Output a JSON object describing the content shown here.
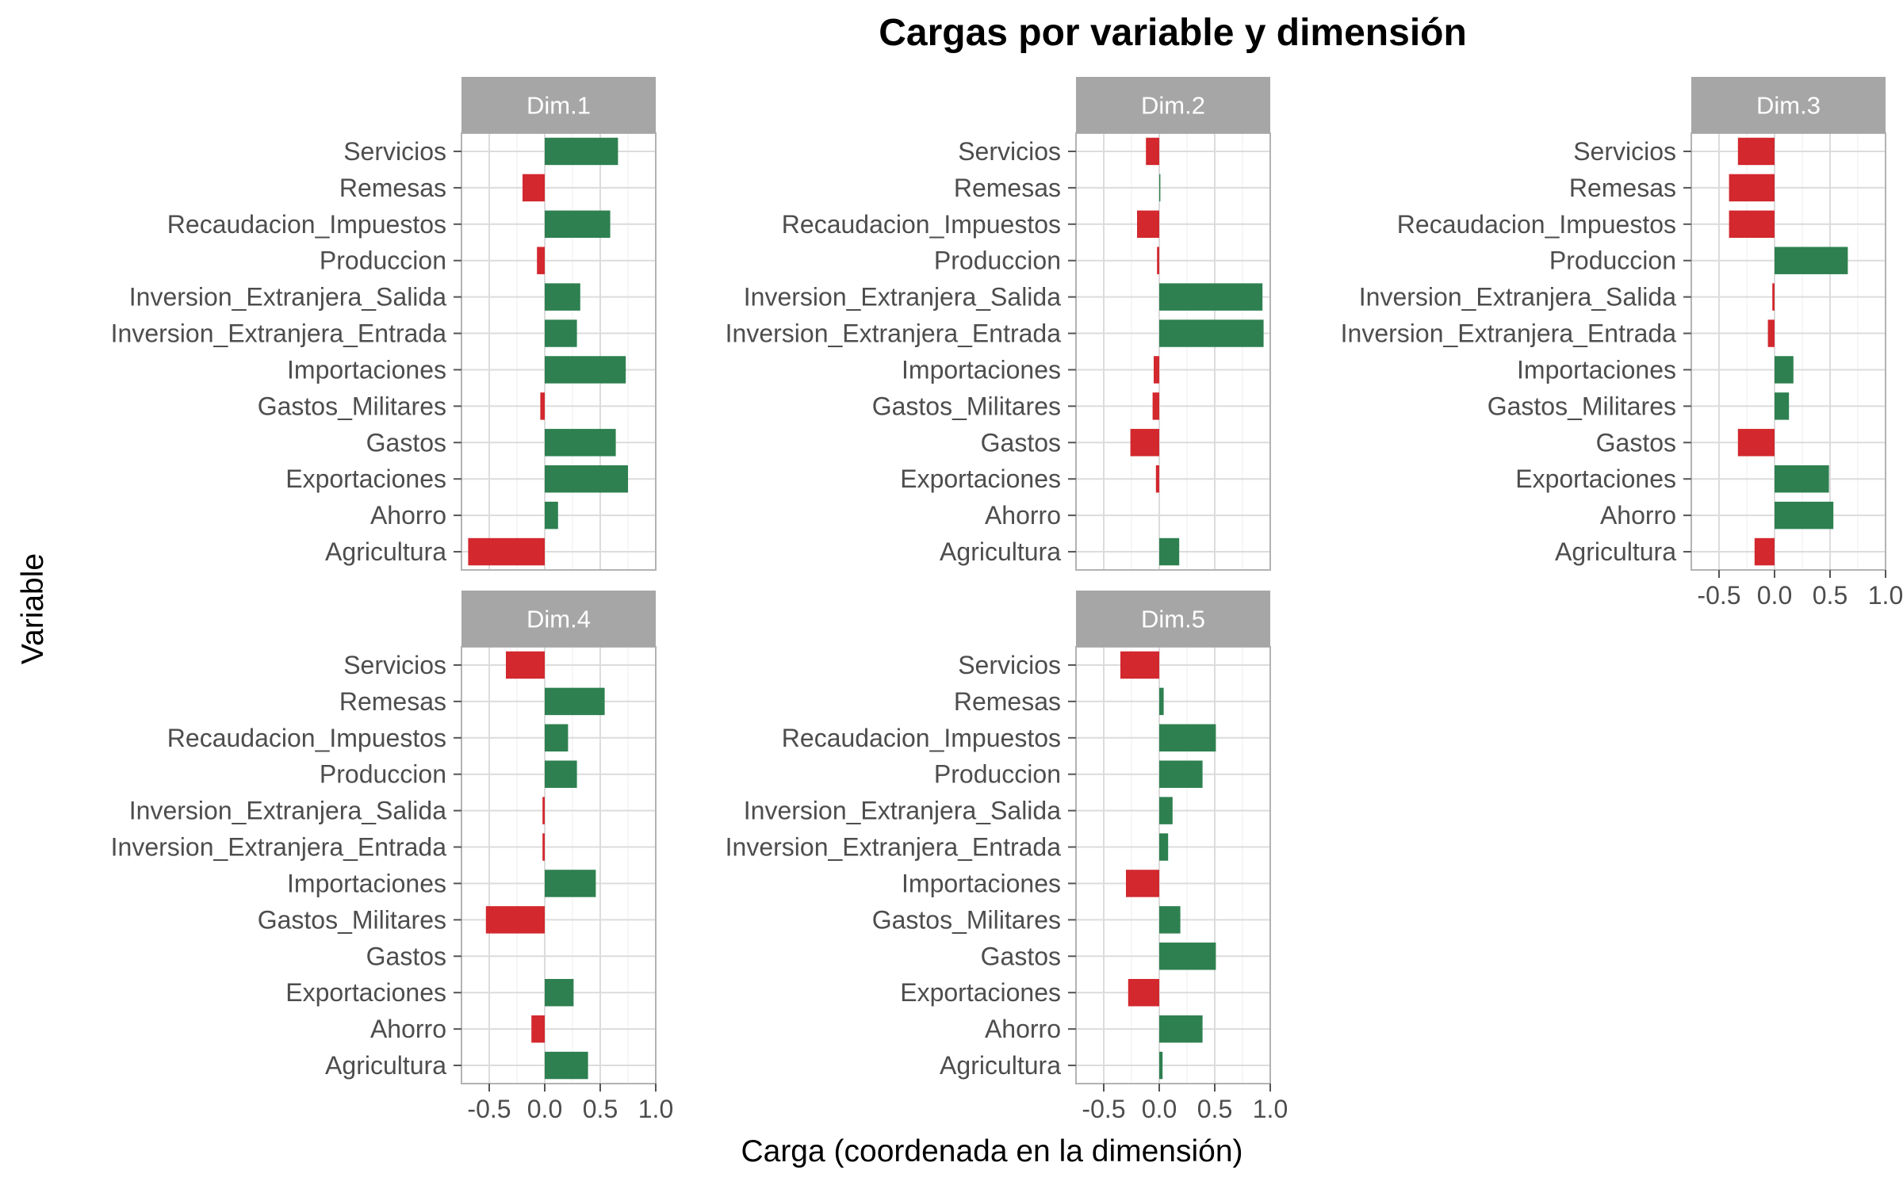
{
  "chart_data": {
    "type": "bar",
    "orientation": "horizontal",
    "title": "Cargas por variable y dimensión",
    "xlabel": "Carga (coordenada en la dimensión)",
    "ylabel": "Variable",
    "xlim": [
      -0.75,
      1.0
    ],
    "xticks": [
      -0.5,
      0.0,
      0.5,
      1.0
    ],
    "xtick_labels": [
      "-0.5",
      "0.0",
      "0.5",
      "1.0"
    ],
    "grid": true,
    "legend": "none",
    "colors": {
      "positive": "#2e8050",
      "negative": "#d2282e",
      "strip": "#a6a6a6",
      "grid": "#dcdcdc"
    },
    "categories": [
      "Servicios",
      "Remesas",
      "Recaudacion_Impuestos",
      "Produccion",
      "Inversion_Extranjera_Salida",
      "Inversion_Extranjera_Entrada",
      "Importaciones",
      "Gastos_Militares",
      "Gastos",
      "Exportaciones",
      "Ahorro",
      "Agricultura"
    ],
    "panels": [
      {
        "name": "Dim.1",
        "values": [
          0.66,
          -0.2,
          0.59,
          -0.07,
          0.32,
          0.29,
          0.73,
          -0.04,
          0.64,
          0.75,
          0.12,
          -0.69
        ]
      },
      {
        "name": "Dim.2",
        "values": [
          -0.12,
          0.01,
          -0.2,
          -0.02,
          0.93,
          0.94,
          -0.05,
          -0.06,
          -0.26,
          -0.03,
          0.0,
          0.18
        ]
      },
      {
        "name": "Dim.3",
        "values": [
          -0.33,
          -0.41,
          -0.41,
          0.66,
          -0.02,
          -0.06,
          0.17,
          0.13,
          -0.33,
          0.49,
          0.53,
          -0.18
        ]
      },
      {
        "name": "Dim.4",
        "values": [
          -0.35,
          0.54,
          0.21,
          0.29,
          -0.02,
          -0.02,
          0.46,
          -0.53,
          0.0,
          0.26,
          -0.12,
          0.39
        ]
      },
      {
        "name": "Dim.5",
        "values": [
          -0.35,
          0.04,
          0.51,
          0.39,
          0.12,
          0.08,
          -0.3,
          0.19,
          0.51,
          -0.28,
          0.39,
          0.03
        ]
      }
    ]
  }
}
